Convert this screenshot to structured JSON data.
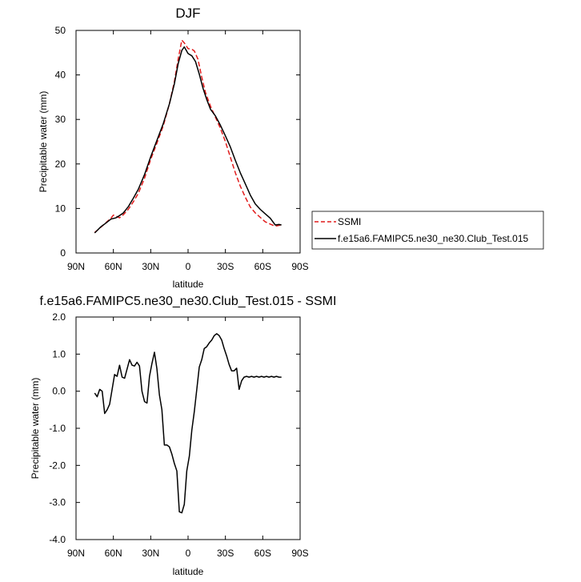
{
  "chart_data": [
    {
      "type": "line",
      "title": "DJF",
      "xlabel": "latitude",
      "ylabel": "Precipitable water (mm)",
      "xlim": [
        -90,
        90
      ],
      "ylim": [
        0,
        50
      ],
      "x_ticks": [
        "90N",
        "60N",
        "30N",
        "0",
        "30S",
        "60S",
        "90S"
      ],
      "y_ticks": [
        "0",
        "10",
        "20",
        "30",
        "40",
        "50"
      ],
      "legend_position": "right",
      "series": [
        {
          "name": "SSMI",
          "color": "#e11b1b",
          "style": "dashed",
          "x": [
            -75,
            -70,
            -66,
            -62,
            -60,
            -58,
            -55,
            -52,
            -48,
            -44,
            -40,
            -35,
            -30,
            -25,
            -20,
            -15,
            -11,
            -8,
            -5,
            -3,
            0,
            3,
            5,
            8,
            11,
            14,
            18,
            22,
            26,
            30,
            34,
            38,
            42,
            46,
            50,
            54,
            58,
            62,
            66,
            70,
            73,
            75
          ],
          "y": [
            4.6,
            5.8,
            6.8,
            7.8,
            8.5,
            8.3,
            7.9,
            8.6,
            9.8,
            11.5,
            13.4,
            16.8,
            21.0,
            24.7,
            28.5,
            33.5,
            38.5,
            43.5,
            47.8,
            47.2,
            45.9,
            45.8,
            45.4,
            43.5,
            39.5,
            36.0,
            33.0,
            30.5,
            28.0,
            25.0,
            21.5,
            18.0,
            15.0,
            12.5,
            10.3,
            9.0,
            8.0,
            7.0,
            6.5,
            6.0,
            6.2,
            6.3
          ]
        },
        {
          "name": "f.e15a6.FAMIPC5.ne30_ne30.Club_Test.015",
          "color": "#000000",
          "style": "solid",
          "x": [
            -75,
            -70,
            -66,
            -62,
            -58,
            -55,
            -52,
            -48,
            -44,
            -40,
            -35,
            -30,
            -25,
            -20,
            -15,
            -11,
            -8,
            -5,
            -3,
            0,
            3,
            6,
            9,
            12,
            15,
            18,
            22,
            26,
            30,
            34,
            38,
            42,
            46,
            50,
            54,
            58,
            62,
            66,
            70,
            73,
            75
          ],
          "y": [
            4.5,
            5.9,
            6.7,
            7.6,
            7.9,
            8.4,
            9.0,
            10.4,
            12.3,
            14.3,
            17.6,
            21.6,
            25.3,
            29.0,
            33.5,
            38.0,
            42.5,
            45.5,
            46.3,
            44.8,
            44.3,
            43.0,
            40.2,
            37.0,
            34.5,
            32.3,
            30.8,
            28.7,
            26.3,
            23.8,
            20.8,
            18.0,
            15.5,
            13.0,
            11.0,
            9.8,
            8.8,
            7.8,
            6.3,
            6.4,
            6.3
          ]
        }
      ]
    },
    {
      "type": "line",
      "title": "f.e15a6.FAMIPC5.ne30_ne30.Club_Test.015 - SSMI",
      "xlabel": "latitude",
      "ylabel": "Precipitable water (mm)",
      "xlim": [
        -90,
        90
      ],
      "ylim": [
        -4.0,
        2.0
      ],
      "x_ticks": [
        "90N",
        "60N",
        "30N",
        "0",
        "30S",
        "60S",
        "90S"
      ],
      "y_ticks": [
        "-4.0",
        "-3.0",
        "-2.0",
        "-1.0",
        "0.0",
        "1.0",
        "2.0"
      ],
      "series": [
        {
          "color": "#000000",
          "style": "solid",
          "x": [
            -75,
            -73,
            -71,
            -69,
            -67,
            -65,
            -63,
            -61,
            -59,
            -57,
            -55,
            -53,
            -51,
            -49,
            -47,
            -45,
            -43,
            -41,
            -39,
            -37,
            -35,
            -33,
            -31,
            -29,
            -27,
            -25,
            -23,
            -21,
            -19,
            -17,
            -15,
            -13,
            -11,
            -9,
            -7,
            -5,
            -3,
            -1,
            1,
            3,
            5,
            7,
            9,
            11,
            13,
            15,
            17,
            19,
            21,
            23,
            25,
            27,
            29,
            31,
            33,
            35,
            37,
            39,
            41,
            43,
            45,
            47,
            49,
            51,
            53,
            55,
            57,
            59,
            61,
            63,
            65,
            67,
            69,
            71,
            73,
            75
          ],
          "y": [
            -0.05,
            -0.15,
            0.05,
            0.0,
            -0.6,
            -0.5,
            -0.35,
            0.05,
            0.45,
            0.4,
            0.7,
            0.38,
            0.35,
            0.6,
            0.85,
            0.7,
            0.68,
            0.78,
            0.68,
            0.0,
            -0.28,
            -0.32,
            0.4,
            0.75,
            1.05,
            0.6,
            -0.1,
            -0.5,
            -1.45,
            -1.45,
            -1.5,
            -1.7,
            -1.95,
            -2.15,
            -3.25,
            -3.28,
            -3.05,
            -2.15,
            -1.75,
            -1.05,
            -0.55,
            0.05,
            0.65,
            0.85,
            1.15,
            1.2,
            1.3,
            1.38,
            1.5,
            1.55,
            1.5,
            1.38,
            1.15,
            0.95,
            0.72,
            0.55,
            0.55,
            0.62,
            0.05,
            0.28,
            0.38,
            0.4,
            0.38,
            0.4,
            0.38,
            0.4,
            0.38,
            0.4,
            0.38,
            0.4,
            0.38,
            0.4,
            0.38,
            0.4,
            0.38,
            0.38
          ]
        }
      ]
    }
  ]
}
